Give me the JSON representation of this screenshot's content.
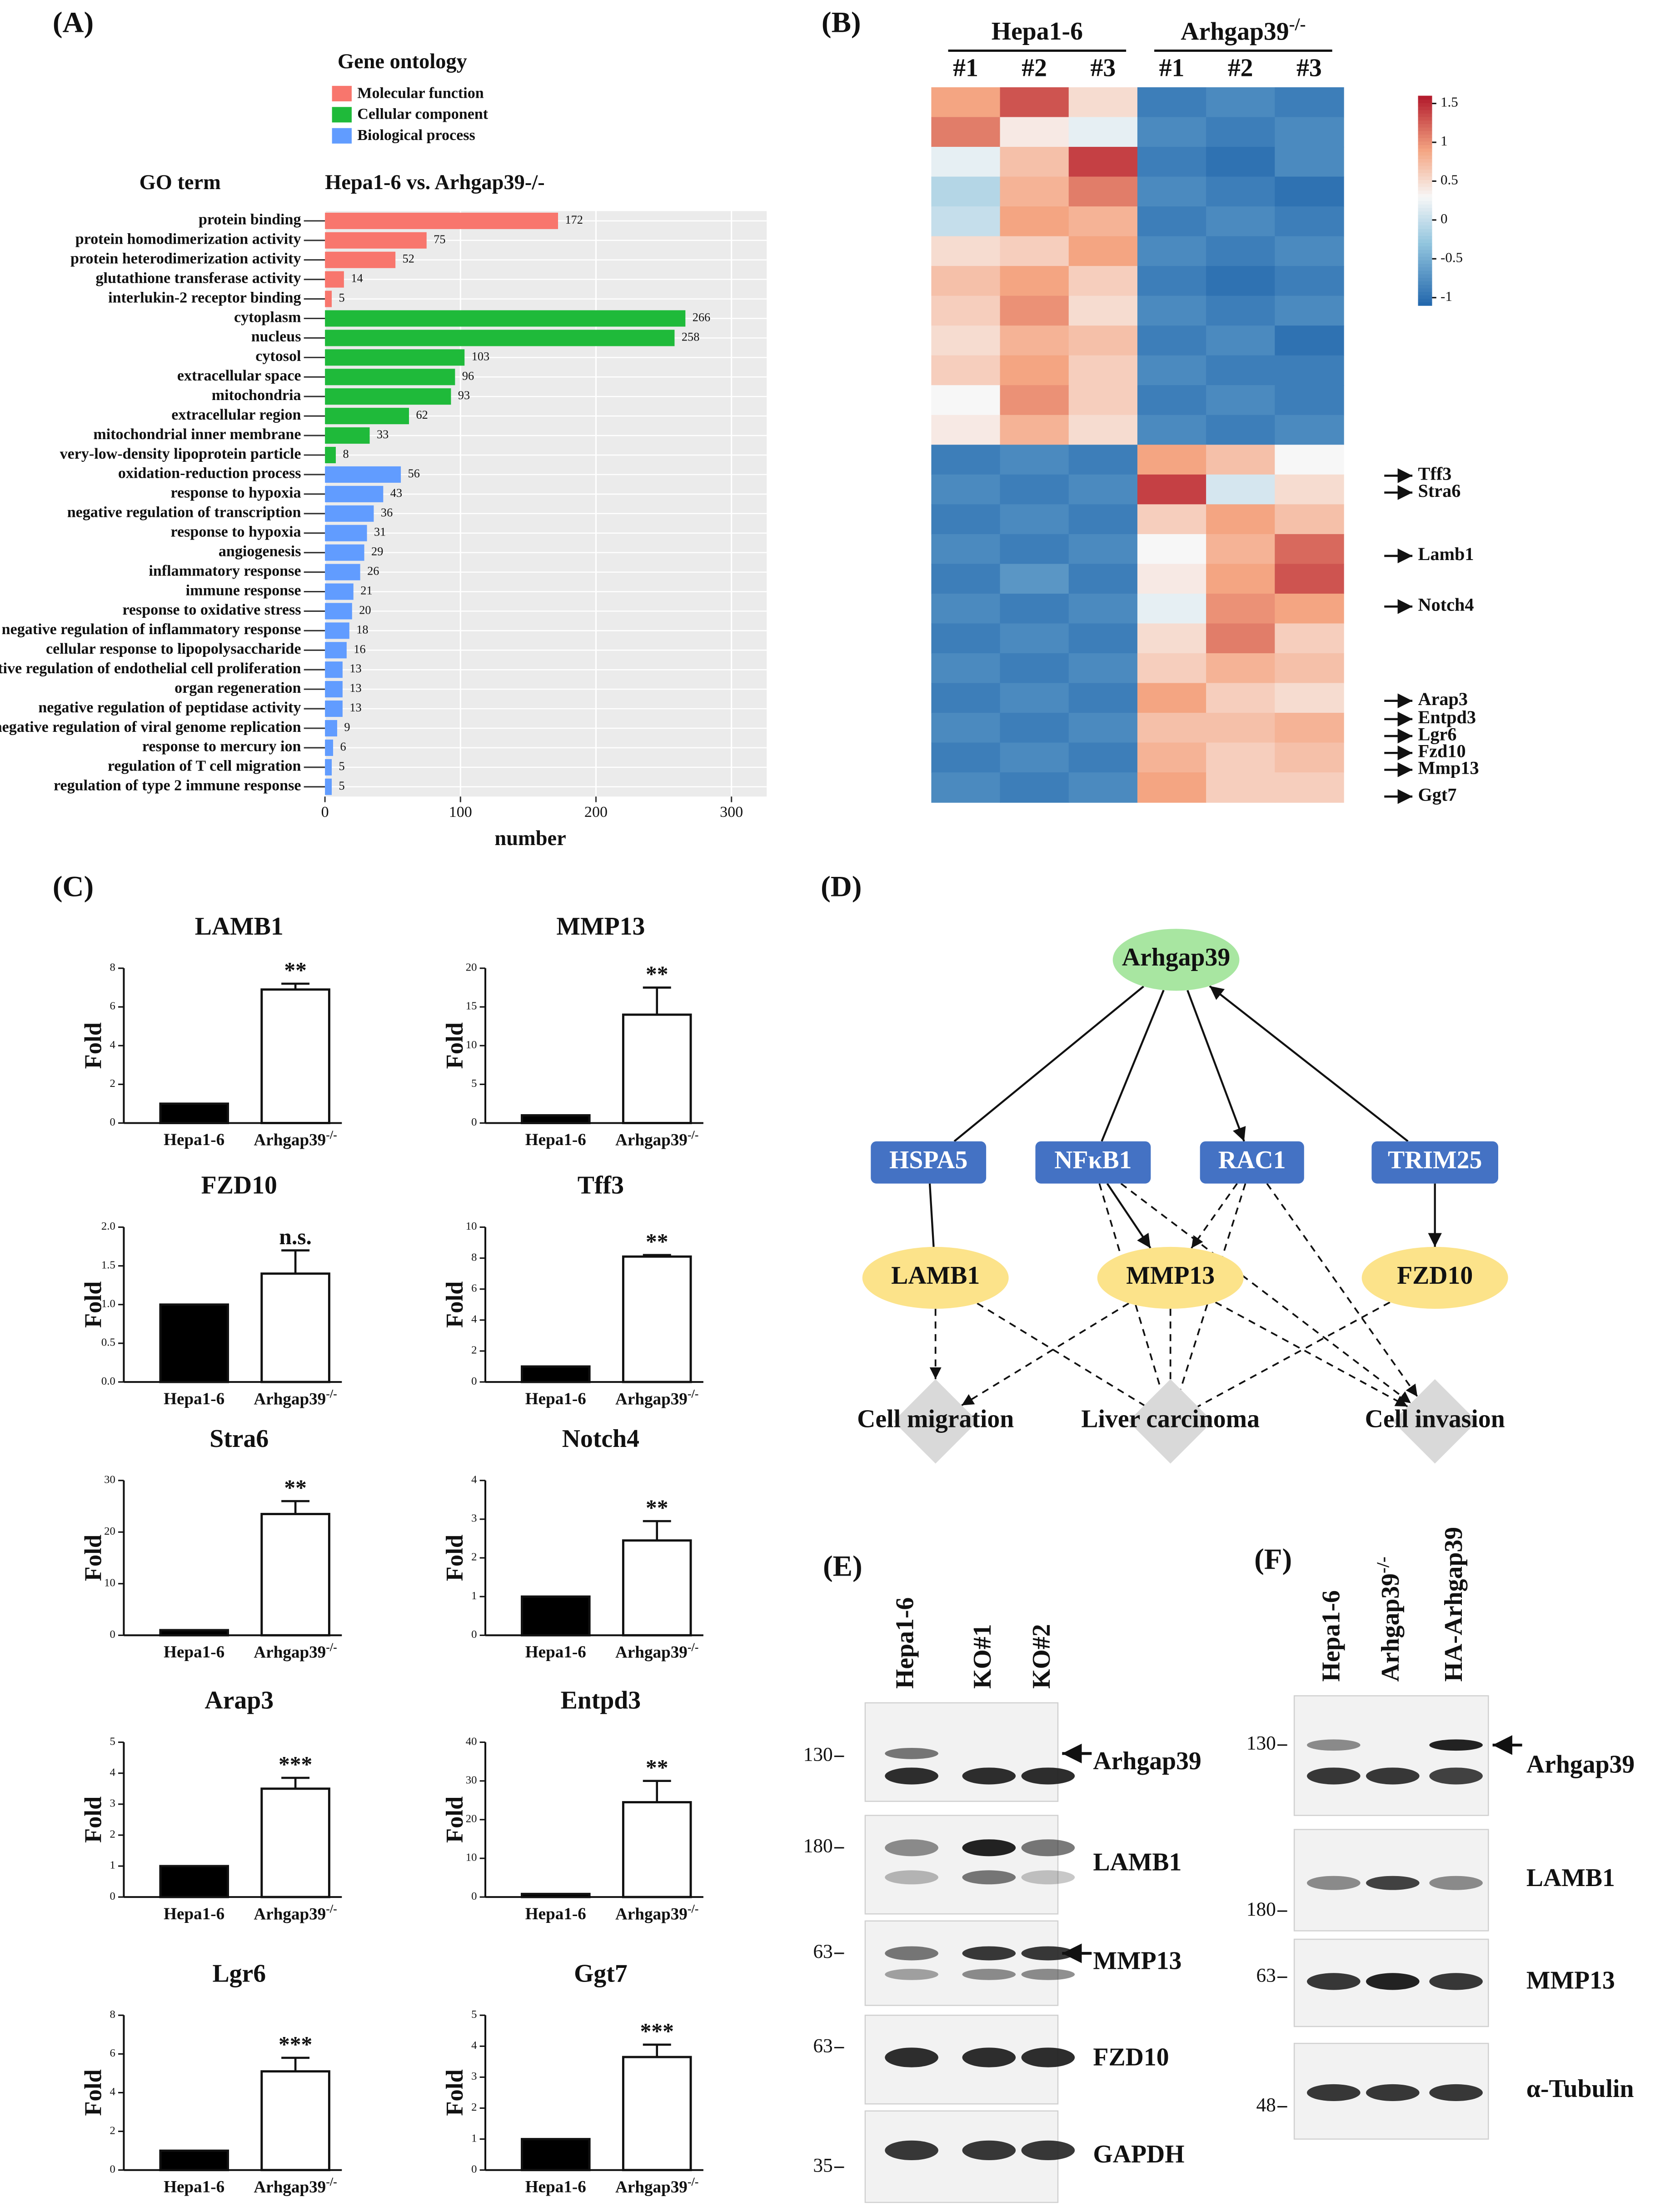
{
  "panel_labels": [
    "(A)",
    "(B)",
    "(C)",
    "(D)",
    "(E)",
    "(F)"
  ],
  "chart_data": [
    {
      "type": "barh",
      "legend_title": "Gene ontology",
      "ylabel": "GO term",
      "title": "Hepa1-6 vs. Arhgap39-/-",
      "xlabel": "number",
      "categories": [
        "protein binding",
        "protein homodimerization activity",
        "protein heterodimerization activity",
        "glutathione transferase activity",
        "interlukin-2 receptor binding",
        "cytoplasm",
        "nucleus",
        "cytosol",
        "extracellular space",
        "mitochondria",
        "extracellular region",
        "mitochondrial inner membrane",
        "very-low-density lipoprotein particle",
        "oxidation-reduction process",
        "response to hypoxia",
        "negative regulation of transcription",
        "response to hypoxia",
        "angiogenesis",
        "inflammatory response",
        "immune response",
        "response to oxidative stress",
        "negative regulation of inflammatory response",
        "cellular response to lipopolysaccharide",
        "positive regulation of endothelial cell proliferation",
        "organ regeneration",
        "negative regulation of peptidase activity",
        "negative regulation of viral genome replication",
        "response to mercury ion",
        "regulation of T cell migration",
        "regulation of type 2 immune response"
      ],
      "series": [
        {
          "name": "Molecular function",
          "color": "#f8766d",
          "values": [
            172,
            75,
            52,
            14,
            5,
            null,
            null,
            null,
            null,
            null,
            null,
            null,
            null,
            null,
            null,
            null,
            null,
            null,
            null,
            null,
            null,
            null,
            null,
            null,
            null,
            null,
            null,
            null,
            null,
            null
          ]
        },
        {
          "name": "Cellular component",
          "color": "#1fba3a",
          "values": [
            null,
            null,
            null,
            null,
            null,
            266,
            258,
            103,
            96,
            93,
            62,
            33,
            8,
            null,
            null,
            null,
            null,
            null,
            null,
            null,
            null,
            null,
            null,
            null,
            null,
            null,
            null,
            null,
            null,
            null
          ]
        },
        {
          "name": "Biological process",
          "color": "#619cff",
          "values": [
            null,
            null,
            null,
            null,
            null,
            null,
            null,
            null,
            null,
            null,
            null,
            null,
            null,
            56,
            43,
            36,
            31,
            29,
            26,
            21,
            20,
            18,
            16,
            13,
            13,
            13,
            9,
            6,
            5,
            5
          ]
        }
      ],
      "xlim": [
        0,
        326
      ],
      "xticks": [
        0,
        100,
        200,
        300
      ],
      "grid": true
    },
    {
      "type": "bar",
      "title": "LAMB1",
      "categories": [
        "Hepa1-6",
        "Arhgap39-/-"
      ],
      "values": [
        1,
        6.9
      ],
      "errors": [
        null,
        0.3
      ],
      "colors": [
        "#000000",
        "#ffffff"
      ],
      "ylim": [
        0,
        8
      ],
      "yticks": [
        0,
        2,
        4,
        6,
        8
      ],
      "ylabel": "Fold",
      "annotation": "**"
    },
    {
      "type": "bar",
      "title": "MMP13",
      "categories": [
        "Hepa1-6",
        "Arhgap39-/-"
      ],
      "values": [
        1,
        14
      ],
      "errors": [
        null,
        3.5
      ],
      "colors": [
        "#000000",
        "#ffffff"
      ],
      "ylim": [
        0,
        20
      ],
      "yticks": [
        0,
        5,
        10,
        15,
        20
      ],
      "ylabel": "Fold",
      "annotation": "**"
    },
    {
      "type": "bar",
      "title": "FZD10",
      "categories": [
        "Hepa1-6",
        "Arhgap39-/-"
      ],
      "values": [
        1,
        1.4
      ],
      "errors": [
        null,
        0.3
      ],
      "colors": [
        "#000000",
        "#ffffff"
      ],
      "ylim": [
        0,
        2
      ],
      "yticks": [
        {
          "value": 0,
          "label": "0.0"
        },
        {
          "value": 0.5,
          "label": "0.5"
        },
        {
          "value": 1,
          "label": "1.0"
        },
        {
          "value": 1.5,
          "label": "1.5"
        },
        {
          "value": 2,
          "label": "2.0"
        }
      ],
      "ylabel": "Fold",
      "annotation": "n.s."
    },
    {
      "type": "bar",
      "title": "Tff3",
      "categories": [
        "Hepa1-6",
        "Arhgap39-/-"
      ],
      "values": [
        1,
        8.1
      ],
      "errors": [
        null,
        0.1
      ],
      "colors": [
        "#000000",
        "#ffffff"
      ],
      "ylim": [
        0,
        10
      ],
      "yticks": [
        0,
        2,
        4,
        6,
        8,
        10
      ],
      "ylabel": "Fold",
      "annotation": "**"
    },
    {
      "type": "bar",
      "title": "Stra6",
      "categories": [
        "Hepa1-6",
        "Arhgap39-/-"
      ],
      "values": [
        1,
        23.5
      ],
      "errors": [
        null,
        2.5
      ],
      "colors": [
        "#000000",
        "#ffffff"
      ],
      "ylim": [
        0,
        30
      ],
      "yticks": [
        0,
        10,
        20,
        30
      ],
      "ylabel": "Fold",
      "annotation": "**"
    },
    {
      "type": "bar",
      "title": "Notch4",
      "categories": [
        "Hepa1-6",
        "Arhgap39-/-"
      ],
      "values": [
        1,
        2.45
      ],
      "errors": [
        null,
        0.5
      ],
      "colors": [
        "#000000",
        "#ffffff"
      ],
      "ylim": [
        0,
        4
      ],
      "yticks": [
        0,
        1,
        2,
        3,
        4
      ],
      "ylabel": "Fold",
      "annotation": "**"
    },
    {
      "type": "bar",
      "title": "Arap3",
      "categories": [
        "Hepa1-6",
        "Arhgap39-/-"
      ],
      "values": [
        1,
        3.5
      ],
      "errors": [
        null,
        0.35
      ],
      "colors": [
        "#000000",
        "#ffffff"
      ],
      "ylim": [
        0,
        5
      ],
      "yticks": [
        0,
        1,
        2,
        3,
        4,
        5
      ],
      "ylabel": "Fold",
      "annotation": "***"
    },
    {
      "type": "bar",
      "title": "Entpd3",
      "categories": [
        "Hepa1-6",
        "Arhgap39-/-"
      ],
      "values": [
        0.8,
        24.5
      ],
      "errors": [
        null,
        5.5
      ],
      "colors": [
        "#000000",
        "#ffffff"
      ],
      "ylim": [
        0,
        40
      ],
      "yticks": [
        0,
        10,
        20,
        30,
        40
      ],
      "ylabel": "Fold",
      "annotation": "**"
    },
    {
      "type": "bar",
      "title": "Lgr6",
      "categories": [
        "Hepa1-6",
        "Arhgap39-/-"
      ],
      "values": [
        1,
        5.1
      ],
      "errors": [
        null,
        0.7
      ],
      "colors": [
        "#000000",
        "#ffffff"
      ],
      "ylim": [
        0,
        8
      ],
      "yticks": [
        0,
        2,
        4,
        6,
        8
      ],
      "ylabel": "Fold",
      "annotation": "***"
    },
    {
      "type": "bar",
      "title": "Ggt7",
      "categories": [
        "Hepa1-6",
        "Arhgap39-/-"
      ],
      "values": [
        1,
        3.65
      ],
      "errors": [
        null,
        0.4
      ],
      "colors": [
        "#000000",
        "#ffffff"
      ],
      "ylim": [
        0,
        5
      ],
      "yticks": [
        0,
        1,
        2,
        3,
        4,
        5
      ],
      "ylabel": "Fold",
      "annotation": "***"
    },
    {
      "type": "heatmap",
      "groups": [
        "Hepa1-6",
        "Arhgap39-/-"
      ],
      "columns": [
        "#1",
        "#2",
        "#3",
        "#1",
        "#2",
        "#3"
      ],
      "values": [
        [
          0.9,
          1.3,
          0.5,
          -0.9,
          -0.8,
          -0.9
        ],
        [
          1.1,
          0.4,
          0.2,
          -0.8,
          -0.9,
          -0.8
        ],
        [
          0.2,
          0.7,
          1.4,
          -0.9,
          -1.0,
          -0.8
        ],
        [
          -0.1,
          0.8,
          1.1,
          -0.8,
          -0.9,
          -1.0
        ],
        [
          0.0,
          0.9,
          0.8,
          -0.9,
          -0.8,
          -0.9
        ],
        [
          0.5,
          0.6,
          0.9,
          -0.8,
          -0.9,
          -0.8
        ],
        [
          0.7,
          0.9,
          0.6,
          -0.9,
          -1.0,
          -0.9
        ],
        [
          0.6,
          1.0,
          0.5,
          -0.8,
          -0.9,
          -0.8
        ],
        [
          0.5,
          0.8,
          0.7,
          -0.9,
          -0.8,
          -1.0
        ],
        [
          0.6,
          0.9,
          0.6,
          -0.8,
          -0.9,
          -0.9
        ],
        [
          0.3,
          1.0,
          0.6,
          -0.9,
          -0.8,
          -0.9
        ],
        [
          0.4,
          0.8,
          0.5,
          -0.8,
          -0.9,
          -0.8
        ],
        [
          -0.9,
          -0.8,
          -0.9,
          0.9,
          0.7,
          0.3
        ],
        [
          -0.8,
          -0.9,
          -0.8,
          1.4,
          0.1,
          0.5
        ],
        [
          -0.9,
          -0.8,
          -0.9,
          0.6,
          0.9,
          0.7
        ],
        [
          -0.8,
          -0.9,
          -0.8,
          0.3,
          0.8,
          1.2
        ],
        [
          -0.9,
          -0.7,
          -0.9,
          0.4,
          0.9,
          1.3
        ],
        [
          -0.8,
          -0.9,
          -0.8,
          0.2,
          1.0,
          0.9
        ],
        [
          -0.9,
          -0.8,
          -0.9,
          0.5,
          1.1,
          0.6
        ],
        [
          -0.8,
          -0.9,
          -0.8,
          0.6,
          0.8,
          0.7
        ],
        [
          -0.9,
          -0.8,
          -0.9,
          0.9,
          0.6,
          0.5
        ],
        [
          -0.8,
          -0.9,
          -0.8,
          0.7,
          0.7,
          0.8
        ],
        [
          -0.9,
          -0.8,
          -0.9,
          0.8,
          0.6,
          0.7
        ],
        [
          -0.8,
          -0.9,
          -0.8,
          0.9,
          0.6,
          0.6
        ]
      ],
      "zlim": [
        -1.1,
        1.6
      ],
      "zticks": [
        1.5,
        1,
        0.5,
        0,
        -0.5,
        -1
      ],
      "labeled_genes": [
        "Tff3",
        "Stra6",
        "Lamb1",
        "Notch4",
        "Arap3",
        "Entpd3",
        "Lgr6",
        "Fzd10",
        "Mmp13",
        "Ggt7"
      ]
    }
  ],
  "network": {
    "nodes": [
      "Arhgap39",
      "HSPA5",
      "NFκB1",
      "RAC1",
      "TRIM25",
      "LAMB1",
      "MMP13",
      "FZD10",
      "Cell migration",
      "Liver carcinoma",
      "Cell invasion"
    ]
  },
  "blots": [
    {
      "lanes": [
        "Hepa1-6",
        "KO#1",
        "KO#2"
      ],
      "rows": [
        {
          "marker": 130,
          "protein": "Arhgap39"
        },
        {
          "marker": 180,
          "protein": "LAMB1"
        },
        {
          "marker": 63,
          "protein": "MMP13"
        },
        {
          "marker": 63,
          "protein": "FZD10"
        },
        {
          "marker": 35,
          "protein": "GAPDH"
        }
      ]
    },
    {
      "lanes": [
        "Hepa1-6",
        "Arhgap39-/-",
        "HA-Arhgap39"
      ],
      "rows": [
        {
          "marker": 130,
          "protein": "Arhgap39"
        },
        {
          "marker": 180,
          "protein": "LAMB1"
        },
        {
          "marker": 63,
          "protein": "MMP13"
        },
        {
          "marker": 48,
          "protein": "α-Tubulin"
        }
      ]
    }
  ]
}
